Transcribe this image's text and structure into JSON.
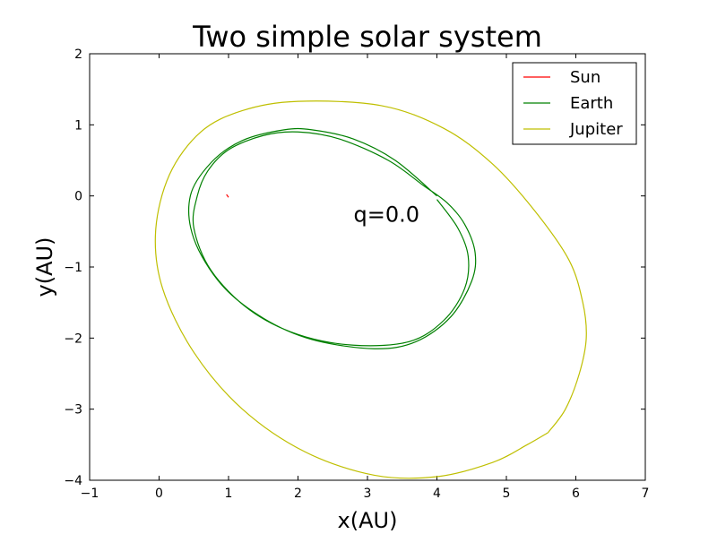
{
  "chart_data": {
    "type": "line",
    "title": "Two simple solar system",
    "xlabel": "x(AU)",
    "ylabel": "y(AU)",
    "xlim": [
      -1,
      7
    ],
    "ylim": [
      -4,
      2
    ],
    "xticks": [
      -1,
      0,
      1,
      2,
      3,
      4,
      5,
      6,
      7
    ],
    "yticks": [
      -4,
      -3,
      -2,
      -1,
      0,
      1,
      2
    ],
    "xtick_labels": [
      "−1",
      "0",
      "1",
      "2",
      "3",
      "4",
      "5",
      "6",
      "7"
    ],
    "ytick_labels": [
      "−4",
      "−3",
      "−2",
      "−1",
      "0",
      "1",
      "2"
    ],
    "grid": false,
    "legend": "top-right",
    "annotation": {
      "text": "q=0.0",
      "x": 2.8,
      "y": -0.25
    },
    "series": [
      {
        "name": "Sun",
        "color": "#ff0000",
        "points": [
          [
            0.97,
            0.02
          ],
          [
            1.0,
            -0.02
          ]
        ]
      },
      {
        "name": "Earth",
        "color": "#008000",
        "points": [
          [
            4.0,
            0.0
          ],
          [
            3.4,
            0.5
          ],
          [
            2.8,
            0.8
          ],
          [
            2.2,
            0.93
          ],
          [
            1.8,
            0.93
          ],
          [
            1.2,
            0.78
          ],
          [
            0.75,
            0.47
          ],
          [
            0.45,
            0.0
          ],
          [
            0.5,
            -0.6
          ],
          [
            0.9,
            -1.25
          ],
          [
            1.5,
            -1.72
          ],
          [
            2.2,
            -2.02
          ],
          [
            3.1,
            -2.15
          ],
          [
            3.7,
            -2.05
          ],
          [
            4.2,
            -1.7
          ],
          [
            4.5,
            -1.2
          ],
          [
            4.55,
            -0.8
          ],
          [
            4.4,
            -0.4
          ],
          [
            4.15,
            -0.1
          ],
          [
            3.8,
            0.15
          ],
          [
            3.3,
            0.5
          ],
          [
            2.6,
            0.8
          ],
          [
            2.0,
            0.9
          ],
          [
            1.5,
            0.85
          ],
          [
            1.0,
            0.65
          ],
          [
            0.7,
            0.35
          ],
          [
            0.55,
            0.0
          ],
          [
            0.5,
            -0.45
          ],
          [
            0.75,
            -1.05
          ],
          [
            1.3,
            -1.6
          ],
          [
            2.0,
            -1.95
          ],
          [
            2.8,
            -2.1
          ],
          [
            3.6,
            -2.05
          ],
          [
            4.1,
            -1.75
          ],
          [
            4.4,
            -1.3
          ],
          [
            4.45,
            -0.85
          ],
          [
            4.3,
            -0.45
          ],
          [
            4.0,
            -0.05
          ]
        ]
      },
      {
        "name": "Jupiter",
        "color": "#bfbf00",
        "points": [
          [
            5.6,
            -3.33
          ],
          [
            5.85,
            -3.0
          ],
          [
            6.05,
            -2.5
          ],
          [
            6.15,
            -2.0
          ],
          [
            6.1,
            -1.5
          ],
          [
            5.9,
            -0.9
          ],
          [
            5.4,
            -0.2
          ],
          [
            4.8,
            0.45
          ],
          [
            4.1,
            0.95
          ],
          [
            3.2,
            1.27
          ],
          [
            2.0,
            1.33
          ],
          [
            1.2,
            1.2
          ],
          [
            0.6,
            0.9
          ],
          [
            0.15,
            0.3
          ],
          [
            -0.05,
            -0.5
          ],
          [
            0.05,
            -1.3
          ],
          [
            0.5,
            -2.2
          ],
          [
            1.2,
            -3.0
          ],
          [
            2.1,
            -3.6
          ],
          [
            3.1,
            -3.93
          ],
          [
            4.0,
            -3.95
          ],
          [
            4.8,
            -3.75
          ],
          [
            5.3,
            -3.5
          ],
          [
            5.6,
            -3.33
          ]
        ]
      }
    ]
  }
}
